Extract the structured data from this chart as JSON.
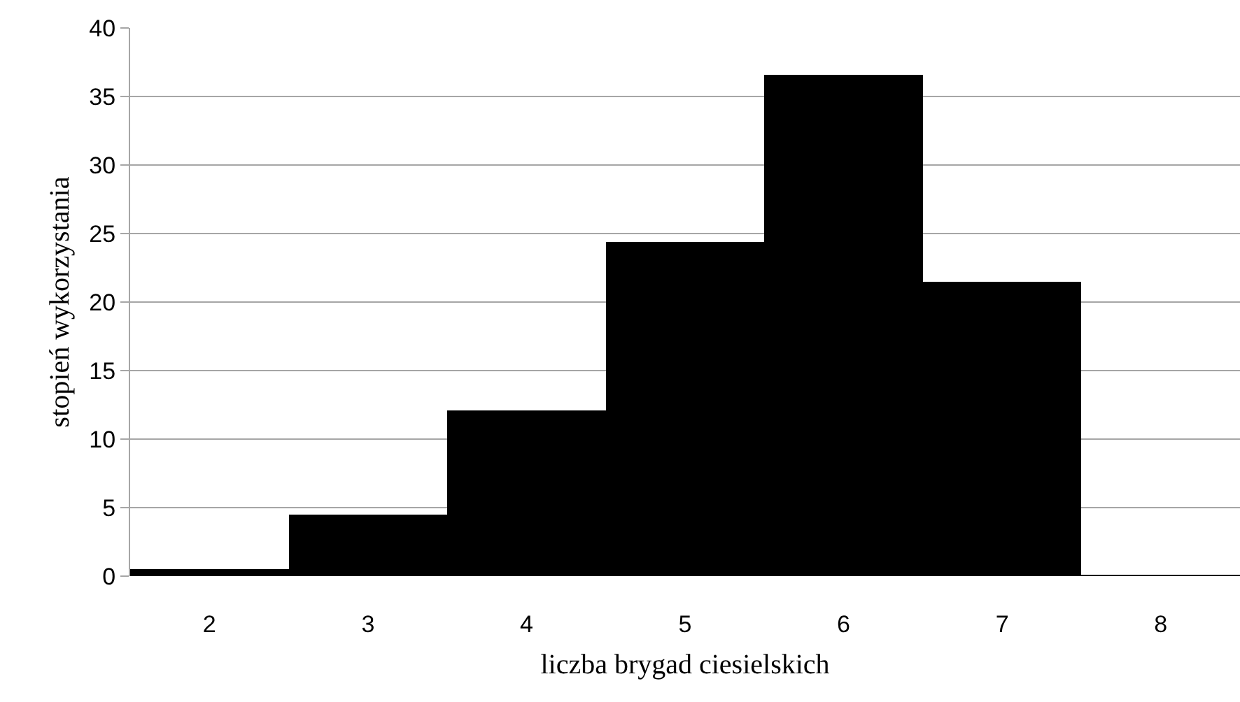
{
  "chart_data": {
    "type": "bar",
    "xlabel": "liczba brygad ciesielskich",
    "ylabel": "stopień wykorzystania",
    "categories": [
      "2",
      "3",
      "4",
      "5",
      "6",
      "7",
      "8"
    ],
    "values": [
      0.5,
      4.5,
      12.1,
      24.4,
      36.6,
      21.5,
      0.1
    ],
    "color": "#000000",
    "ylim": [
      0,
      40
    ],
    "yticks": [
      0,
      5,
      10,
      15,
      20,
      25,
      30,
      35,
      40
    ],
    "grid": "y"
  }
}
